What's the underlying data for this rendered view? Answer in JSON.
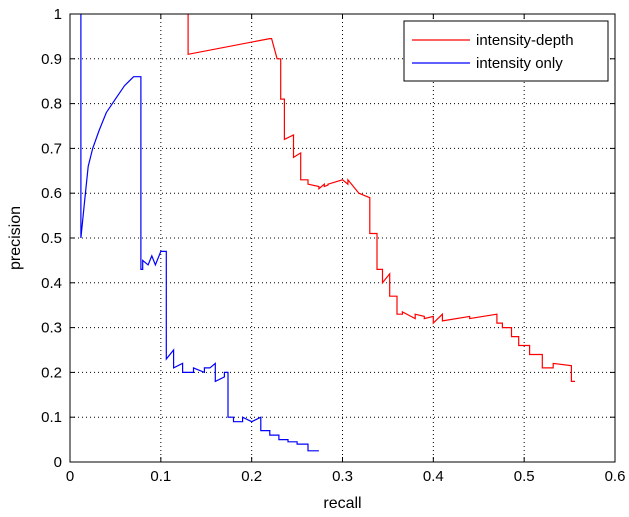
{
  "chart_data": {
    "type": "line",
    "title": "",
    "xlabel": "recall",
    "ylabel": "precision",
    "xlim": [
      0,
      0.6
    ],
    "ylim": [
      0,
      1
    ],
    "xticks": [
      0,
      0.1,
      0.2,
      0.3,
      0.4,
      0.5,
      0.6
    ],
    "xtick_labels": [
      "0",
      "0.1",
      "0.2",
      "0.3",
      "0.4",
      "0.5",
      "0.6"
    ],
    "yticks": [
      0,
      0.1,
      0.2,
      0.3,
      0.4,
      0.5,
      0.6,
      0.7,
      0.8,
      0.9,
      1
    ],
    "ytick_labels": [
      "0",
      "0.1",
      "0.2",
      "0.3",
      "0.4",
      "0.5",
      "0.6",
      "0.7",
      "0.8",
      "0.9",
      "1"
    ],
    "grid": true,
    "legend_position": "top-right",
    "series": [
      {
        "name": "intensity-depth",
        "color": "#ff0000",
        "x": [
          0.13,
          0.13,
          0.22,
          0.222,
          0.228,
          0.232,
          0.232,
          0.236,
          0.236,
          0.246,
          0.246,
          0.254,
          0.254,
          0.262,
          0.262,
          0.274,
          0.274,
          0.28,
          0.28,
          0.284,
          0.284,
          0.3,
          0.306,
          0.306,
          0.318,
          0.318,
          0.324,
          0.33,
          0.33,
          0.338,
          0.338,
          0.344,
          0.344,
          0.352,
          0.352,
          0.36,
          0.36,
          0.366,
          0.366,
          0.38,
          0.38,
          0.39,
          0.39,
          0.4,
          0.4,
          0.41,
          0.41,
          0.44,
          0.44,
          0.47,
          0.47,
          0.476,
          0.476,
          0.486,
          0.486,
          0.494,
          0.494,
          0.506,
          0.506,
          0.52,
          0.52,
          0.532,
          0.532,
          0.552,
          0.552,
          0.556
        ],
        "y": [
          1,
          0.91,
          0.945,
          0.945,
          0.9,
          0.9,
          0.81,
          0.81,
          0.72,
          0.73,
          0.68,
          0.69,
          0.63,
          0.63,
          0.62,
          0.615,
          0.61,
          0.62,
          0.615,
          0.618,
          0.62,
          0.63,
          0.62,
          0.63,
          0.6,
          0.6,
          0.595,
          0.59,
          0.51,
          0.51,
          0.43,
          0.43,
          0.4,
          0.42,
          0.37,
          0.37,
          0.33,
          0.33,
          0.335,
          0.32,
          0.33,
          0.325,
          0.32,
          0.325,
          0.31,
          0.33,
          0.315,
          0.325,
          0.32,
          0.33,
          0.31,
          0.31,
          0.3,
          0.3,
          0.28,
          0.28,
          0.26,
          0.26,
          0.24,
          0.24,
          0.21,
          0.21,
          0.22,
          0.215,
          0.18,
          0.18
        ]
      },
      {
        "name": "intensity only",
        "color": "#0000ff",
        "x": [
          0.012,
          0.012,
          0.016,
          0.02,
          0.025,
          0.032,
          0.04,
          0.05,
          0.06,
          0.07,
          0.078,
          0.078,
          0.08,
          0.08,
          0.086,
          0.09,
          0.094,
          0.1,
          0.106,
          0.106,
          0.114,
          0.114,
          0.124,
          0.124,
          0.136,
          0.136,
          0.148,
          0.148,
          0.154,
          0.16,
          0.16,
          0.17,
          0.17,
          0.174,
          0.174,
          0.18,
          0.18,
          0.19,
          0.19,
          0.2,
          0.21,
          0.21,
          0.22,
          0.22,
          0.23,
          0.23,
          0.24,
          0.24,
          0.25,
          0.25,
          0.262,
          0.262,
          0.274
        ],
        "y": [
          1,
          0.5,
          0.58,
          0.66,
          0.7,
          0.74,
          0.78,
          0.81,
          0.84,
          0.86,
          0.86,
          0.43,
          0.43,
          0.45,
          0.44,
          0.46,
          0.44,
          0.47,
          0.47,
          0.23,
          0.25,
          0.21,
          0.22,
          0.2,
          0.2,
          0.21,
          0.2,
          0.21,
          0.21,
          0.22,
          0.18,
          0.19,
          0.2,
          0.2,
          0.1,
          0.1,
          0.09,
          0.09,
          0.1,
          0.09,
          0.1,
          0.07,
          0.07,
          0.06,
          0.06,
          0.05,
          0.05,
          0.045,
          0.045,
          0.04,
          0.04,
          0.025,
          0.025
        ]
      }
    ]
  }
}
